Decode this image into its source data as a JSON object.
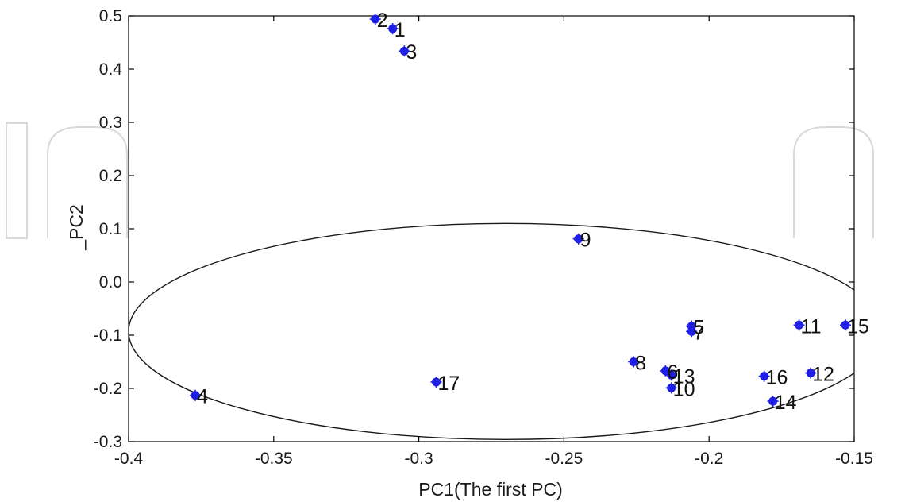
{
  "chart_data": {
    "type": "scatter",
    "title": "",
    "xlabel": "PC1(The first PC)",
    "ylabel": "_PC2",
    "xlim": [
      -0.4,
      -0.15
    ],
    "ylim": [
      -0.3,
      0.5
    ],
    "x_ticks": [
      {
        "value": -0.4,
        "label": "-0.4"
      },
      {
        "value": -0.35,
        "label": "-0.35"
      },
      {
        "value": -0.3,
        "label": "-0.3"
      },
      {
        "value": -0.25,
        "label": "-0.25"
      },
      {
        "value": -0.2,
        "label": "-0.2"
      },
      {
        "value": -0.15,
        "label": "-0.15"
      }
    ],
    "y_ticks": [
      {
        "value": 0.5,
        "label": "0.5"
      },
      {
        "value": 0.4,
        "label": "0.4"
      },
      {
        "value": 0.3,
        "label": "0.3"
      },
      {
        "value": 0.2,
        "label": "0.2"
      },
      {
        "value": 0.1,
        "label": "0.1"
      },
      {
        "value": 0.0,
        "label": "0.0"
      },
      {
        "value": -0.1,
        "label": "-0.1"
      },
      {
        "value": -0.2,
        "label": "-0.2"
      },
      {
        "value": -0.3,
        "label": "-0.3"
      }
    ],
    "grid": false,
    "legend": "none",
    "marker_color": "#1f1fe6",
    "points": [
      {
        "label": "1",
        "x": -0.309,
        "y": 0.476
      },
      {
        "label": "2",
        "x": -0.315,
        "y": 0.494
      },
      {
        "label": "3",
        "x": -0.305,
        "y": 0.434
      },
      {
        "label": "4",
        "x": -0.377,
        "y": -0.213
      },
      {
        "label": "5",
        "x": -0.206,
        "y": -0.083
      },
      {
        "label": "6",
        "x": -0.215,
        "y": -0.167
      },
      {
        "label": "7",
        "x": -0.206,
        "y": -0.093
      },
      {
        "label": "8",
        "x": -0.226,
        "y": -0.15
      },
      {
        "label": "9",
        "x": -0.245,
        "y": 0.081
      },
      {
        "label": "10",
        "x": -0.213,
        "y": -0.199
      },
      {
        "label": "11",
        "x": -0.169,
        "y": -0.081
      },
      {
        "label": "12",
        "x": -0.165,
        "y": -0.171
      },
      {
        "label": "13",
        "x": -0.213,
        "y": -0.175
      },
      {
        "label": "14",
        "x": -0.178,
        "y": -0.224
      },
      {
        "label": "15",
        "x": -0.153,
        "y": -0.081
      },
      {
        "label": "16",
        "x": -0.181,
        "y": -0.177
      },
      {
        "label": "17",
        "x": -0.294,
        "y": -0.188
      }
    ],
    "ellipse": {
      "cx": -0.27,
      "cy": -0.093,
      "rx": 0.13,
      "ry": 0.203
    }
  }
}
